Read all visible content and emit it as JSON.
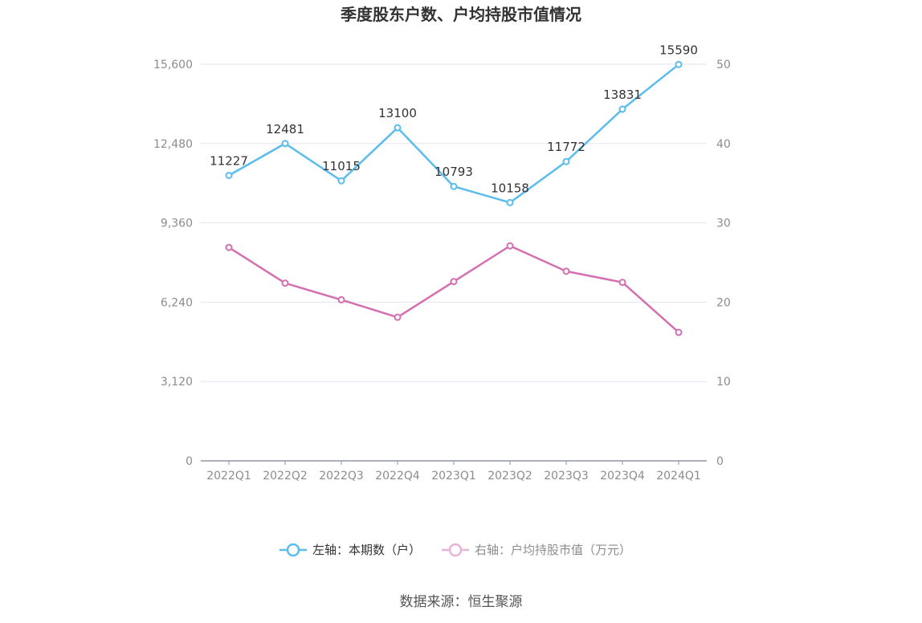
{
  "chart_data": {
    "type": "line",
    "title": "季度股东户数、户均持股市值情况",
    "categories": [
      "2022Q1",
      "2022Q2",
      "2022Q3",
      "2022Q4",
      "2023Q1",
      "2023Q2",
      "2023Q3",
      "2023Q4",
      "2024Q1"
    ],
    "left_axis": {
      "ticks": [
        "0",
        "3,120",
        "6,240",
        "9,360",
        "12,480",
        "15,600"
      ],
      "ylim": [
        0,
        15600
      ]
    },
    "right_axis": {
      "ticks": [
        "0",
        "10",
        "20",
        "30",
        "40",
        "50"
      ],
      "ylim": [
        0,
        50
      ]
    },
    "series": [
      {
        "name": "左轴：本期数（户）",
        "axis": "left",
        "color": "#5bbcee",
        "values": [
          11227,
          12481,
          11015,
          13100,
          10793,
          10158,
          11772,
          13831,
          15590
        ],
        "labels": [
          "11227",
          "12481",
          "11015",
          "13100",
          "10793",
          "10158",
          "11772",
          "13831",
          "15590"
        ]
      },
      {
        "name": "右轴：户均持股市值（万元）",
        "axis": "right",
        "color": "#d46fb0",
        "values": [
          26.9,
          22.4,
          20.3,
          18.1,
          22.6,
          27.1,
          23.9,
          22.5,
          16.2
        ]
      }
    ],
    "legend_position": "bottom",
    "grid": true
  },
  "source_text": "数据来源：恒生聚源"
}
